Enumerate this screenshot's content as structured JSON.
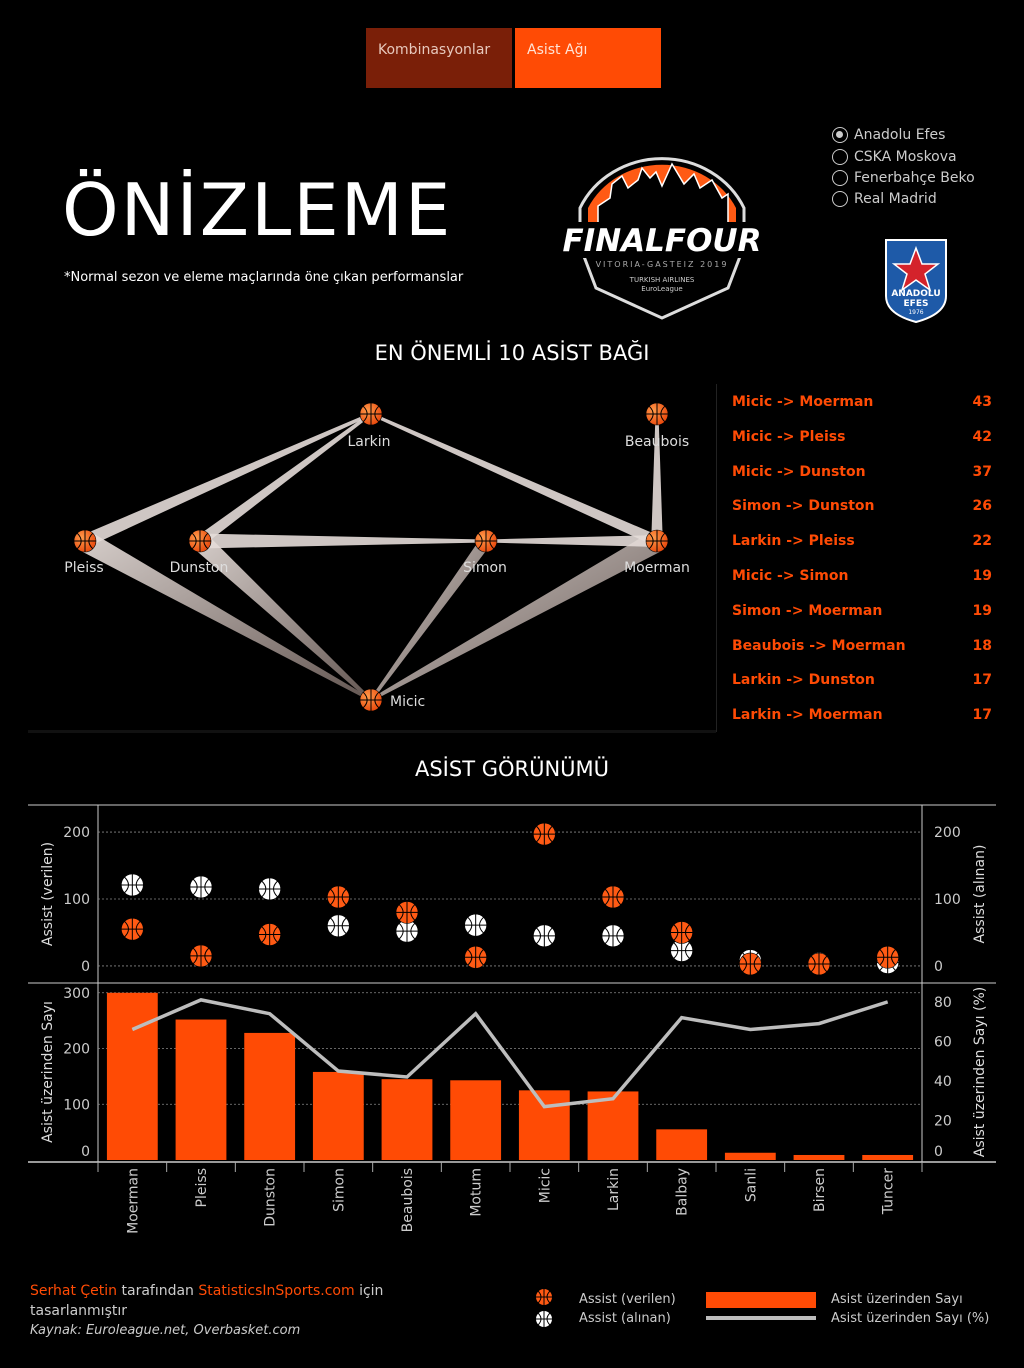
{
  "tabs": [
    {
      "label": "Kombinasyonlar"
    },
    {
      "label": "Asist Ağı"
    }
  ],
  "header": {
    "title": "ÖNİZLEME",
    "subtitle": "*Normal sezon ve eleme maçlarında öne çıkan performanslar"
  },
  "logo": {
    "line1": "FINALFOUR",
    "line2": "VITORIA-GASTEIZ 2019",
    "team_logo": "ANADOLU EFES 1976"
  },
  "team_filter": {
    "options": [
      "Anadolu Efes",
      "CSKA Moskova",
      "Fenerbahçe Beko",
      "Real Madrid"
    ],
    "selected": "Anadolu Efes"
  },
  "network_section": {
    "title": "EN ÖNEMLİ 10 ASİST BAĞI",
    "nodes": [
      "Larkin",
      "Beaubois",
      "Pleiss",
      "Dunston",
      "Simon",
      "Moerman",
      "Micic"
    ],
    "top_links": [
      {
        "label": "Micic -> Moerman",
        "value": 43
      },
      {
        "label": "Micic -> Pleiss",
        "value": 42
      },
      {
        "label": "Micic -> Dunston",
        "value": 37
      },
      {
        "label": "Simon -> Dunston",
        "value": 26
      },
      {
        "label": "Larkin -> Pleiss",
        "value": 22
      },
      {
        "label": "Micic -> Simon",
        "value": 19
      },
      {
        "label": "Simon -> Moerman",
        "value": 19
      },
      {
        "label": "Beaubois -> Moerman",
        "value": 18
      },
      {
        "label": "Larkin -> Dunston",
        "value": 17
      },
      {
        "label": "Larkin -> Moerman",
        "value": 17
      }
    ]
  },
  "assist_section": {
    "title": "ASİST GÖRÜNÜMÜ"
  },
  "chart_data": {
    "type": "scatter+bar+line",
    "categories": [
      "Moerman",
      "Pleiss",
      "Dunston",
      "Simon",
      "Beaubois",
      "Motum",
      "Micic",
      "Larkin",
      "Balbay",
      "Sanli",
      "Birsen",
      "Tuncer"
    ],
    "top_panel": {
      "ylabel_left": "Assist (verilen)",
      "ylabel_right": "Assist (alınan)",
      "yticks": [
        0,
        100,
        200
      ],
      "ylim": [
        -15,
        230
      ],
      "series": [
        {
          "name": "Assist (verilen)",
          "values": [
            55,
            15,
            47,
            103,
            80,
            13,
            197,
            103,
            50,
            3,
            3,
            13
          ]
        },
        {
          "name": "Assist (alınan)",
          "values": [
            121,
            118,
            115,
            60,
            52,
            61,
            45,
            45,
            23,
            8,
            4,
            5
          ]
        }
      ]
    },
    "bottom_panel": {
      "ylabel_left": "Asist üzerinden Sayı",
      "ylabel_right": "Asist üzerinden Sayı (%)",
      "yticks_left": [
        0,
        100,
        200,
        300
      ],
      "yticks_right": [
        0,
        20,
        40,
        60,
        80
      ],
      "ylim_left": [
        0,
        305
      ],
      "ylim_right": [
        0,
        86
      ],
      "series": [
        {
          "name": "Asist üzerinden Sayı",
          "type": "bar",
          "values": [
            300,
            252,
            228,
            158,
            145,
            143,
            125,
            123,
            55,
            13,
            9,
            9
          ]
        },
        {
          "name": "Asist üzerinden Sayı (%)",
          "type": "line",
          "values": [
            66,
            81,
            74,
            45,
            42,
            74,
            27,
            31,
            72,
            66,
            69,
            80
          ]
        }
      ]
    },
    "legend": [
      {
        "label": "Assist (verilen)",
        "color": "#ff4b05"
      },
      {
        "label": "Assist (alınan)",
        "color": "#ffffff"
      },
      {
        "label": "Asist üzerinden Sayı",
        "color": "#ff4b05"
      },
      {
        "label": "Asist üzerinden Sayı (%)",
        "color": "#bdbdbd"
      }
    ]
  },
  "footer": {
    "author": "Serhat Çetin",
    "by_text": " tarafından ",
    "site": "StatisticsInSports.com",
    "for_text": " için tasarlanmıştır",
    "source": "Kaynak: Euroleague.net, Overbasket.com"
  },
  "colors": {
    "accent": "#ff4b05",
    "dark_accent": "#7a1f08",
    "line": "#bdbdbd"
  }
}
